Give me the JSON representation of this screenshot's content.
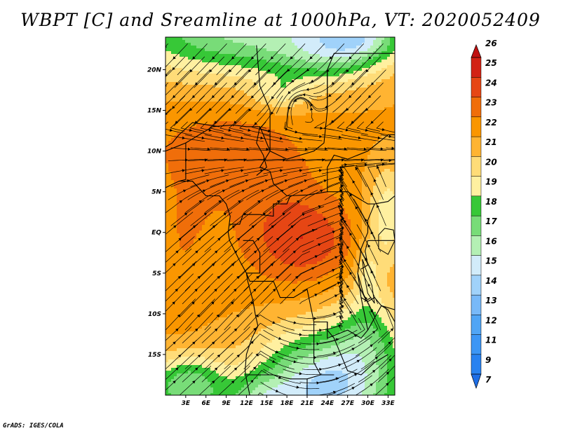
{
  "title": "WBPT [C] and Sreamline at 1000hPa, VT: 2020052409",
  "credit": "GrADS: IGES/COLA",
  "map": {
    "lon_range": [
      0,
      34
    ],
    "lat_range": [
      -20,
      24
    ],
    "lat_labels": [
      "20N",
      "15N",
      "10N",
      "5N",
      "EQ",
      "5S",
      "10S",
      "15S"
    ],
    "lat_values": [
      20,
      15,
      10,
      5,
      0,
      -5,
      -10,
      -15
    ],
    "lon_labels": [
      "3E",
      "6E",
      "9E",
      "12E",
      "15E",
      "18E",
      "21E",
      "24E",
      "27E",
      "30E",
      "33E"
    ],
    "lon_values": [
      3,
      6,
      9,
      12,
      15,
      18,
      21,
      24,
      27,
      30,
      33
    ]
  },
  "colorbar": {
    "labels": [
      "7",
      "9",
      "11",
      "12",
      "13",
      "14",
      "15",
      "16",
      "17",
      "18",
      "19",
      "20",
      "21",
      "22",
      "23",
      "24",
      "25",
      "26"
    ],
    "colors": [
      "#1e6ee6",
      "#2882f0",
      "#3c96f5",
      "#50a5f5",
      "#78b9f8",
      "#a0d2fa",
      "#d2ecfa",
      "#b4f0b4",
      "#78dc78",
      "#37c837",
      "#fff0a0",
      "#ffdc78",
      "#ffb432",
      "#fa9600",
      "#f06e0a",
      "#e64614",
      "#d22214",
      "#c01010"
    ]
  }
}
